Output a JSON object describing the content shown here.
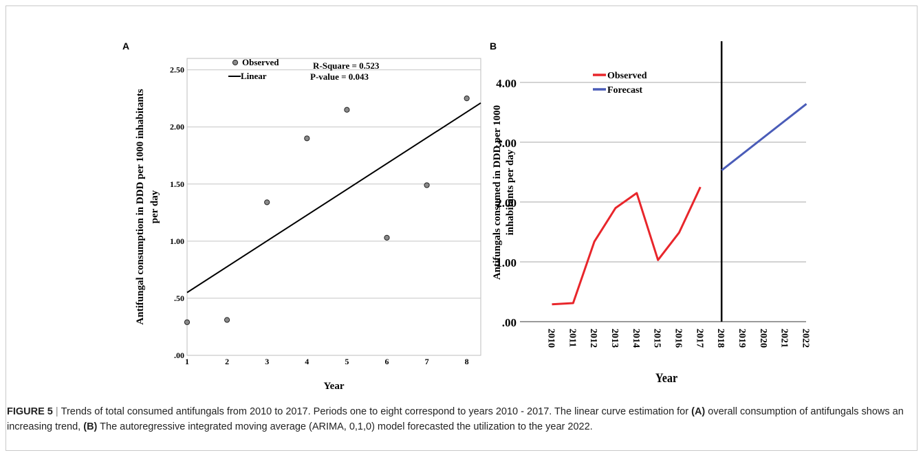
{
  "chart_data": [
    {
      "panel": "A",
      "type": "scatter",
      "xlabel": "Year",
      "ylabel": "Antifungal consumption in DDD per 1000 inhabitants per day",
      "ylabel_lines": [
        "Antifungal consumption in DDD per 1000 inhabitants",
        "per day"
      ],
      "xlim": [
        1,
        8.35
      ],
      "ylim": [
        0,
        2.6
      ],
      "x_ticks": [
        1,
        2,
        3,
        4,
        5,
        6,
        7,
        8
      ],
      "y_ticks": [
        0,
        0.5,
        1.0,
        1.5,
        2.0,
        2.5
      ],
      "y_tick_labels": [
        ".00",
        ".50",
        "1.00",
        "1.50",
        "2.00",
        "2.50"
      ],
      "grid": "horizontal",
      "legend": [
        "Observed",
        "Linear"
      ],
      "annotations": [
        "R-Square = 0.523",
        "P-value     = 0.043"
      ],
      "series": [
        {
          "name": "Observed",
          "x": [
            1,
            2,
            3,
            4,
            5,
            6,
            7,
            8
          ],
          "values": [
            0.29,
            0.31,
            1.34,
            1.9,
            2.15,
            1.03,
            1.49,
            2.25
          ]
        },
        {
          "name": "Linear",
          "x": [
            1,
            8.35
          ],
          "values": [
            0.55,
            2.21
          ]
        }
      ]
    },
    {
      "panel": "B",
      "type": "line",
      "xlabel": "Year",
      "ylabel": "Antifungals consumed in DDD per 1000 inhabitants per day",
      "ylabel_lines": [
        "Antifungals consumed in DDD per 1000",
        "inhabitants per day"
      ],
      "categories": [
        "2010",
        "2011",
        "2012",
        "2013",
        "2014",
        "2015",
        "2016",
        "2017",
        "2018",
        "2019",
        "2020",
        "2021",
        "2022"
      ],
      "ylim": [
        0,
        4.4
      ],
      "y_ticks": [
        0,
        1,
        2,
        3,
        4
      ],
      "y_tick_labels": [
        ".00",
        "1.00",
        "2.00",
        "3.00",
        "4.00"
      ],
      "grid": "horizontal",
      "legend": [
        "Observed",
        "Forecast"
      ],
      "vline_at": "2018",
      "series": [
        {
          "name": "Observed",
          "color": "#e8262b",
          "x": [
            "2010",
            "2011",
            "2012",
            "2013",
            "2014",
            "2015",
            "2016",
            "2017"
          ],
          "values": [
            0.29,
            0.31,
            1.34,
            1.9,
            2.15,
            1.03,
            1.49,
            2.25
          ]
        },
        {
          "name": "Forecast",
          "color": "#4a5cb8",
          "x": [
            "2018",
            "2022"
          ],
          "values": [
            2.53,
            3.64
          ]
        }
      ]
    }
  ],
  "panel_labels": {
    "a": "A",
    "b": "B"
  },
  "caption": {
    "label": "FIGURE 5",
    "separator": "|",
    "text1": "Trends of total consumed antifungals from 2010 to 2017. Periods one to eight correspond to years 2010 - 2017. The linear curve estimation for ",
    "a_label": "(A)",
    "text2": " overall consumption of antifungals shows an increasing trend, ",
    "b_label": "(B)",
    "text3": " The autoregressive integrated moving average (ARIMA, 0,1,0) model forecasted the utilization to the year 2022."
  }
}
